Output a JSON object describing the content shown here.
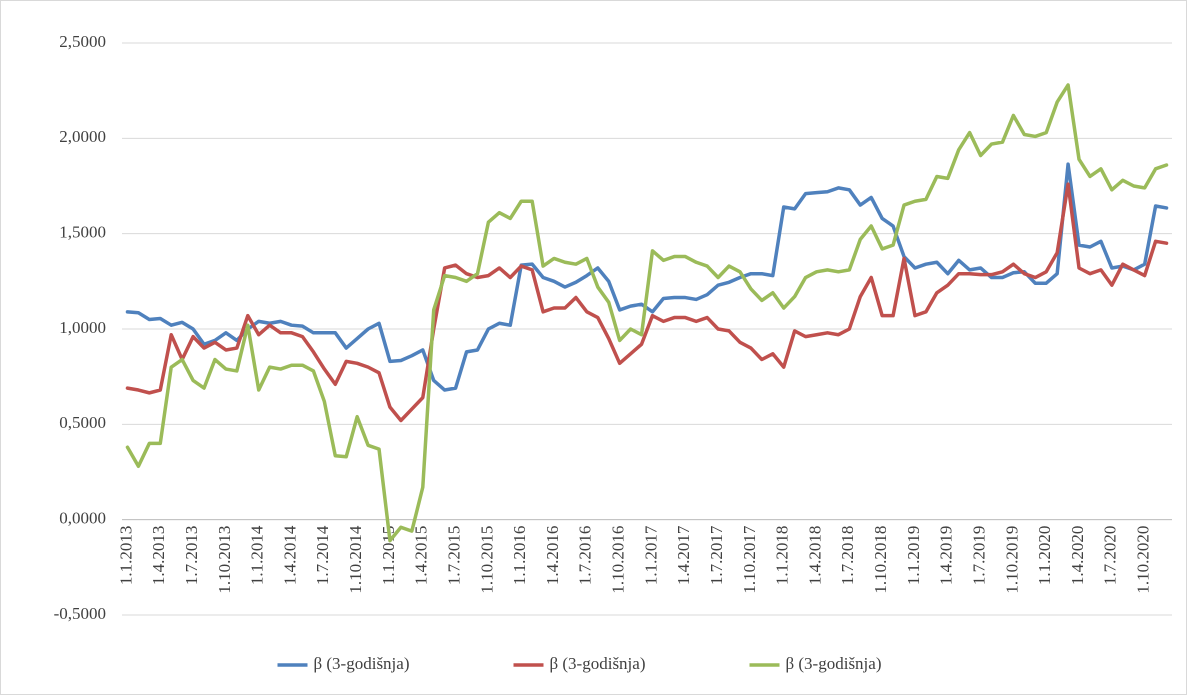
{
  "chart_data": {
    "type": "line",
    "categories": [
      "1.1.2013",
      null,
      null,
      "1.4.2013",
      null,
      null,
      "1.7.2013",
      null,
      null,
      "1.10.2013",
      null,
      null,
      "1.1.2014",
      null,
      null,
      "1.4.2014",
      null,
      null,
      "1.7.2014",
      null,
      null,
      "1.10.2014",
      null,
      null,
      "1.1.2015",
      null,
      null,
      "1.4.2015",
      null,
      null,
      "1.7.2015",
      null,
      null,
      "1.10.2015",
      null,
      null,
      "1.1.2016",
      null,
      null,
      "1.4.2016",
      null,
      null,
      "1.7.2016",
      null,
      null,
      "1.10.2016",
      null,
      null,
      "1.1.2017",
      null,
      null,
      "1.4.2017",
      null,
      null,
      "1.7.2017",
      null,
      null,
      "1.10.2017",
      null,
      null,
      "1.1.2018",
      null,
      null,
      "1.4.2018",
      null,
      null,
      "1.7.2018",
      null,
      null,
      "1.10.2018",
      null,
      null,
      "1.1.2019",
      null,
      null,
      "1.4.2019",
      null,
      null,
      "1.7.2019",
      null,
      null,
      "1.10.2019",
      null,
      null,
      "1.1.2020",
      null,
      null,
      "1.4.2020",
      null,
      null,
      "1.7.2020",
      null,
      null,
      "1.10.2020",
      null,
      null
    ],
    "series": [
      {
        "name": "β (3-godišnja)",
        "color": "#4f81bd",
        "values": [
          1.09,
          1.085,
          1.05,
          1.055,
          1.02,
          1.035,
          1.0,
          0.92,
          0.94,
          0.98,
          0.94,
          1.0,
          1.04,
          1.03,
          1.04,
          1.02,
          1.015,
          0.98,
          0.98,
          0.98,
          0.9,
          0.95,
          1.0,
          1.03,
          0.83,
          0.835,
          0.86,
          0.89,
          0.73,
          0.68,
          0.69,
          0.88,
          0.89,
          1.0,
          1.03,
          1.02,
          1.335,
          1.34,
          1.27,
          1.25,
          1.22,
          1.245,
          1.28,
          1.32,
          1.25,
          1.1,
          1.12,
          1.13,
          1.09,
          1.16,
          1.165,
          1.165,
          1.155,
          1.18,
          1.23,
          1.245,
          1.27,
          1.29,
          1.29,
          1.28,
          1.64,
          1.63,
          1.71,
          1.715,
          1.72,
          1.74,
          1.73,
          1.65,
          1.69,
          1.58,
          1.54,
          1.38,
          1.32,
          1.34,
          1.35,
          1.29,
          1.36,
          1.31,
          1.32,
          1.27,
          1.27,
          1.295,
          1.3,
          1.24,
          1.24,
          1.29,
          1.865,
          1.44,
          1.43,
          1.46,
          1.32,
          1.33,
          1.31,
          1.34,
          1.645,
          1.635
        ]
      },
      {
        "name": "β (3-godišnja)",
        "color": "#c0504d",
        "values": [
          0.69,
          0.68,
          0.665,
          0.68,
          0.97,
          0.84,
          0.96,
          0.9,
          0.93,
          0.89,
          0.9,
          1.07,
          0.97,
          1.02,
          0.98,
          0.98,
          0.96,
          0.88,
          0.79,
          0.71,
          0.83,
          0.82,
          0.8,
          0.77,
          0.59,
          0.52,
          0.58,
          0.64,
          1.0,
          1.32,
          1.335,
          1.29,
          1.27,
          1.28,
          1.32,
          1.27,
          1.33,
          1.31,
          1.09,
          1.11,
          1.11,
          1.165,
          1.09,
          1.06,
          0.95,
          0.82,
          0.87,
          0.92,
          1.07,
          1.04,
          1.06,
          1.06,
          1.04,
          1.06,
          1.0,
          0.99,
          0.93,
          0.9,
          0.84,
          0.87,
          0.8,
          0.99,
          0.96,
          0.97,
          0.98,
          0.97,
          1.0,
          1.17,
          1.27,
          1.07,
          1.07,
          1.37,
          1.07,
          1.09,
          1.19,
          1.23,
          1.29,
          1.29,
          1.285,
          1.285,
          1.3,
          1.34,
          1.29,
          1.27,
          1.3,
          1.4,
          1.76,
          1.32,
          1.29,
          1.31,
          1.23,
          1.34,
          1.31,
          1.28,
          1.46,
          1.45
        ]
      },
      {
        "name": "β (3-godišnja)",
        "color": "#9bbb59",
        "values": [
          0.38,
          0.28,
          0.4,
          0.4,
          0.8,
          0.84,
          0.73,
          0.69,
          0.84,
          0.79,
          0.78,
          1.02,
          0.68,
          0.8,
          0.79,
          0.81,
          0.81,
          0.78,
          0.62,
          0.335,
          0.33,
          0.54,
          0.39,
          0.37,
          -0.11,
          -0.04,
          -0.06,
          0.17,
          1.1,
          1.28,
          1.27,
          1.25,
          1.29,
          1.56,
          1.61,
          1.58,
          1.67,
          1.67,
          1.33,
          1.37,
          1.35,
          1.34,
          1.37,
          1.22,
          1.14,
          0.94,
          1.0,
          0.97,
          1.41,
          1.36,
          1.38,
          1.38,
          1.35,
          1.33,
          1.27,
          1.33,
          1.3,
          1.21,
          1.15,
          1.19,
          1.11,
          1.17,
          1.27,
          1.3,
          1.31,
          1.3,
          1.31,
          1.47,
          1.54,
          1.42,
          1.44,
          1.65,
          1.67,
          1.68,
          1.8,
          1.79,
          1.94,
          2.03,
          1.91,
          1.97,
          1.98,
          2.12,
          2.02,
          2.01,
          2.03,
          2.19,
          2.28,
          1.89,
          1.8,
          1.84,
          1.73,
          1.78,
          1.75,
          1.74,
          1.84,
          1.86
        ]
      }
    ],
    "ylim": [
      -0.5,
      2.5
    ],
    "yticks": [
      {
        "value": -0.5,
        "label": "-0,5000"
      },
      {
        "value": 0,
        "label": "0,0000"
      },
      {
        "value": 0.5,
        "label": "0,5000"
      },
      {
        "value": 1,
        "label": "1,0000"
      },
      {
        "value": 1.5,
        "label": "1,5000"
      },
      {
        "value": 2,
        "label": "2,0000"
      },
      {
        "value": 2.5,
        "label": "2,5000"
      }
    ],
    "grid": true,
    "legend": "bottom"
  }
}
